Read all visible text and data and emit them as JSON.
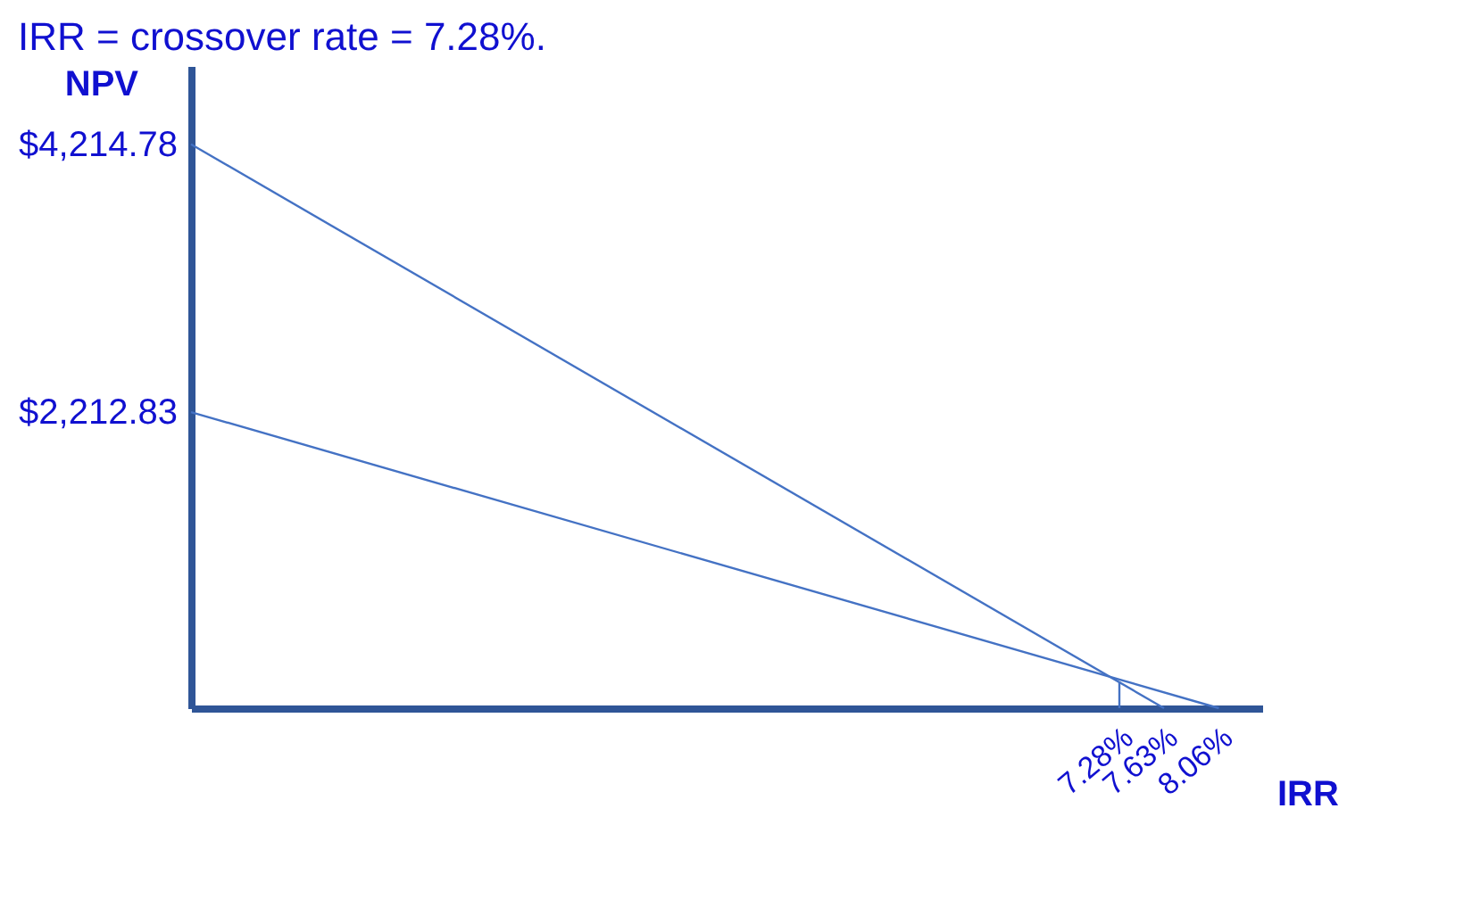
{
  "chart_data": {
    "type": "line",
    "title": "IRR = crossover rate = 7.28%.",
    "xlabel": "IRR",
    "ylabel": "NPV",
    "series": [
      {
        "color": "#4472c4",
        "x": [
          0,
          7.63
        ],
        "values": [
          4214.78,
          0
        ]
      },
      {
        "color": "#4472c4",
        "x": [
          0,
          8.06
        ],
        "values": [
          2212.83,
          0
        ]
      },
      {
        "color": "#4472c4",
        "x": [
          7.28,
          7.28
        ],
        "values": [
          200,
          0
        ]
      }
    ],
    "xlim": [
      0,
      8.4
    ],
    "ylim": [
      0,
      4800
    ],
    "xticks": [
      {
        "value": 7.28,
        "label": "7.28%"
      },
      {
        "value": 7.63,
        "label": "7.63%"
      },
      {
        "value": 8.06,
        "label": "8.06%"
      }
    ],
    "yticks": [
      {
        "value": 2212.83,
        "label": "$2,212.83"
      },
      {
        "value": 4214.78,
        "label": "$4,214.78"
      }
    ],
    "marker": "none",
    "line_style": "solid"
  }
}
